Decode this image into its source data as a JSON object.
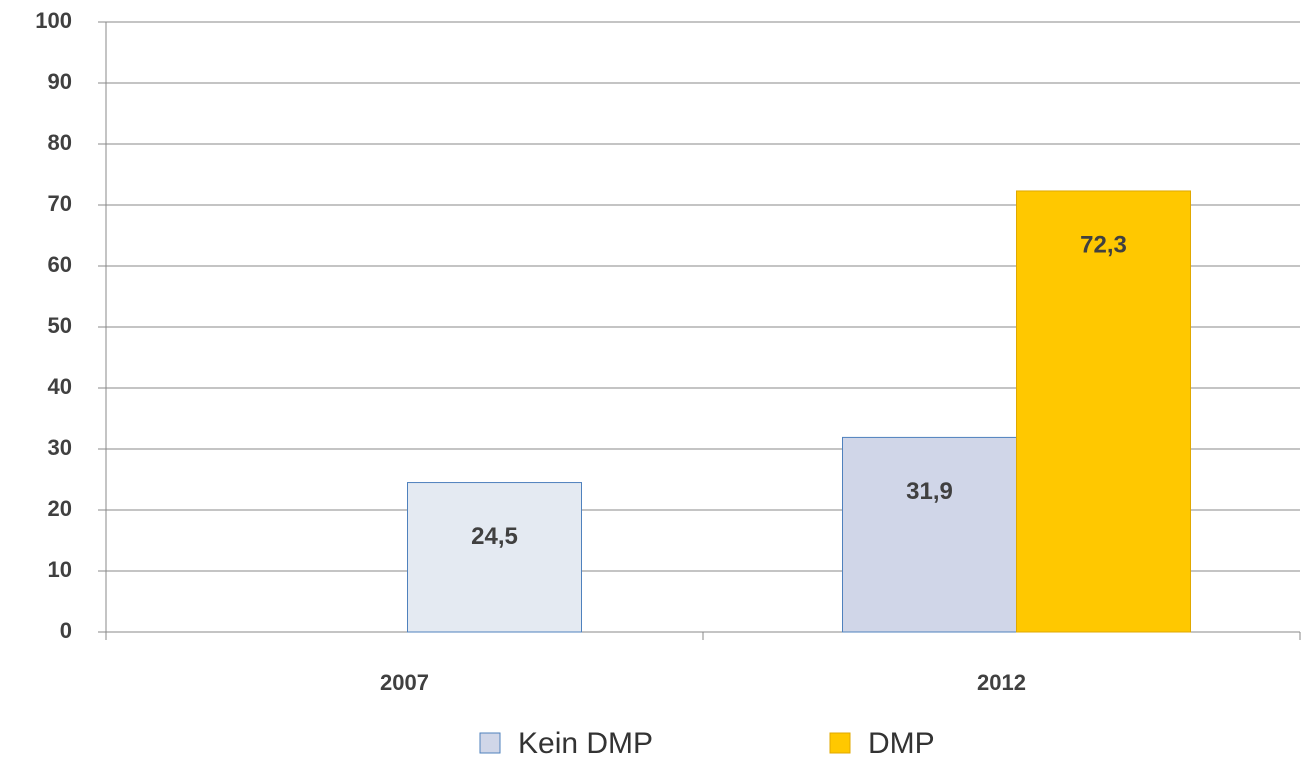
{
  "chart_data": {
    "type": "bar",
    "categories": [
      "2007",
      "2012"
    ],
    "series": [
      {
        "name": "Kein DMP",
        "color": "#d0d6e8",
        "point_colors": [
          "#e4eaf2",
          "#d0d6e8"
        ],
        "edgecolor": "#4f81bd",
        "values": [
          24.5,
          31.9
        ],
        "value_labels": [
          "24,5",
          "31,9"
        ]
      },
      {
        "name": "DMP",
        "color": "#ffc800",
        "edgecolor": "#e0a800",
        "values": [
          null,
          72.3
        ],
        "value_labels": [
          null,
          "72,3"
        ]
      }
    ],
    "ylim": [
      0,
      100
    ],
    "yticks": [
      0,
      10,
      20,
      30,
      40,
      50,
      60,
      70,
      80,
      90,
      100
    ],
    "grid": true,
    "legend": "bottom"
  }
}
